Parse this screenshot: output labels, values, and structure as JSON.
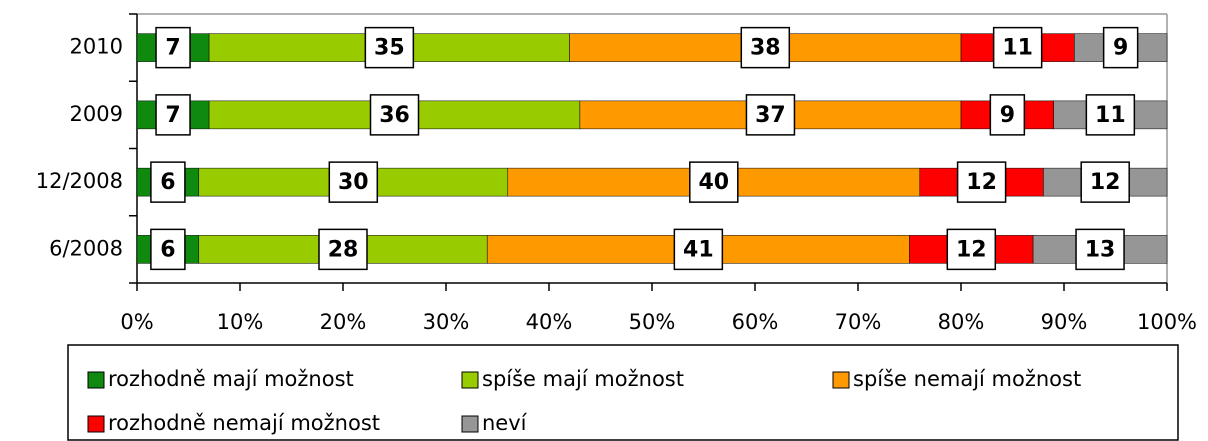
{
  "chart_data": {
    "type": "stacked-barh",
    "categories": [
      "2010",
      "2009",
      "12/2008",
      "6/2008"
    ],
    "series": [
      {
        "name": "rozhodně mají možnost",
        "color": "#0f8a0f",
        "values": [
          7,
          7,
          6,
          6
        ]
      },
      {
        "name": "spíše mají možnost",
        "color": "#99cc00",
        "values": [
          35,
          36,
          30,
          28
        ]
      },
      {
        "name": "spíše nemají možnost",
        "color": "#ff9900",
        "values": [
          38,
          37,
          40,
          41
        ]
      },
      {
        "name": "rozhodně nemají možnost",
        "color": "#ff0000",
        "values": [
          11,
          9,
          12,
          12
        ]
      },
      {
        "name": "neví",
        "color": "#969696",
        "values": [
          9,
          11,
          12,
          13
        ]
      }
    ],
    "xlim": [
      0,
      100
    ],
    "xticks": [
      {
        "value": 0,
        "label": "0%"
      },
      {
        "value": 10,
        "label": "10%"
      },
      {
        "value": 20,
        "label": "20%"
      },
      {
        "value": 30,
        "label": "30%"
      },
      {
        "value": 40,
        "label": "40%"
      },
      {
        "value": 50,
        "label": "50%"
      },
      {
        "value": 60,
        "label": "60%"
      },
      {
        "value": 70,
        "label": "70%"
      },
      {
        "value": 80,
        "label": "80%"
      },
      {
        "value": 90,
        "label": "90%"
      },
      {
        "value": 100,
        "label": "100%"
      }
    ],
    "legend": "bottom"
  }
}
